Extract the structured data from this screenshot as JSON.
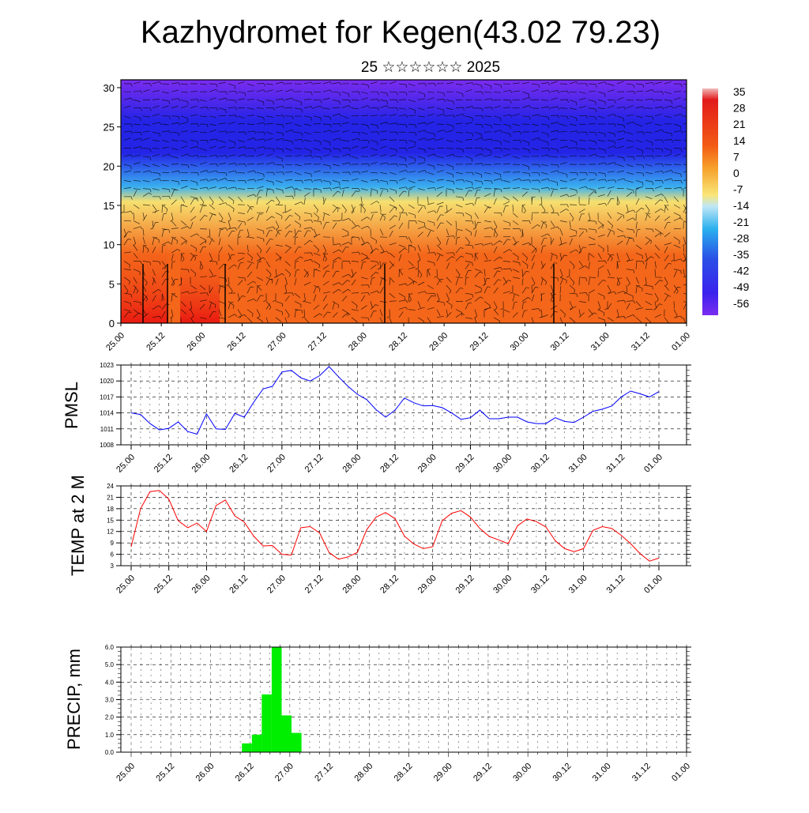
{
  "title": "Kazhydromet for Kegen(43.02 79.23)",
  "subtitle": "25 ☆☆☆☆☆☆ 2025",
  "time_labels": [
    "25.00",
    "25.12",
    "26.00",
    "26.12",
    "27.00",
    "27.12",
    "28.00",
    "28.12",
    "29.00",
    "29.12",
    "30.00",
    "30.12",
    "31.00",
    "31.12",
    "01.00"
  ],
  "chart_data": [
    {
      "type": "heatmap",
      "name": "temperature-cross-section",
      "ylim": [
        0,
        31
      ],
      "y_ticks": [
        0,
        5,
        10,
        15,
        20,
        25,
        30
      ],
      "colorbar_labels": [
        "35",
        "28",
        "21",
        "14",
        "7",
        "0",
        "-7",
        "-14",
        "-21",
        "-28",
        "-35",
        "-42",
        "-49",
        "-56"
      ],
      "colors": {
        "top": "#7b2cf0",
        "upper": "#2424e6",
        "mid": "#3ab0f0",
        "low": "#f6e070",
        "base": "#f4661a",
        "hot": "#e81010"
      }
    },
    {
      "type": "line",
      "name": "pmsl",
      "ylabel": "PMSL",
      "ylim": [
        1008,
        1023
      ],
      "y_ticks": [
        1008,
        1011,
        1014,
        1017,
        1020,
        1023
      ],
      "color": "#0000ff",
      "values": [
        1014.0,
        1013.7,
        1012.0,
        1010.8,
        1011.1,
        1012.3,
        1010.5,
        1010.0,
        1013.8,
        1011.0,
        1010.9,
        1013.9,
        1013.2,
        1016.0,
        1018.5,
        1019.0,
        1021.7,
        1022.0,
        1020.6,
        1020.0,
        1021.0,
        1022.7,
        1020.8,
        1019.0,
        1017.5,
        1016.5,
        1014.6,
        1013.2,
        1014.5,
        1016.8,
        1015.9,
        1015.3,
        1015.4,
        1015.0,
        1014.0,
        1012.8,
        1013.1,
        1014.5,
        1012.9,
        1012.9,
        1013.2,
        1013.2,
        1012.3,
        1012.0,
        1012.0,
        1013.1,
        1012.4,
        1012.2,
        1013.2,
        1014.3,
        1014.7,
        1015.3,
        1017.0,
        1018.1,
        1017.6,
        1017.0,
        1018.0
      ]
    },
    {
      "type": "line",
      "name": "temp-2m",
      "ylabel": "TEMP at 2 M",
      "ylim": [
        3,
        24
      ],
      "y_ticks": [
        3,
        6,
        9,
        12,
        15,
        18,
        21,
        24
      ],
      "color": "#ff0000",
      "values": [
        8.0,
        18.0,
        22.5,
        22.8,
        20.5,
        14.8,
        13.0,
        14.2,
        12.0,
        18.8,
        20.3,
        16.1,
        14.5,
        10.8,
        8.2,
        8.3,
        6.0,
        5.8,
        13.0,
        13.3,
        11.6,
        6.5,
        4.7,
        5.3,
        6.5,
        12.5,
        15.8,
        17.0,
        15.4,
        10.8,
        8.7,
        7.5,
        8.0,
        14.8,
        16.8,
        17.5,
        15.8,
        12.8,
        10.7,
        9.8,
        8.8,
        13.5,
        15.3,
        14.6,
        13.2,
        9.6,
        7.5,
        6.7,
        7.5,
        12.3,
        13.3,
        12.8,
        11.0,
        8.8,
        6.2,
        4.2,
        5.0
      ]
    },
    {
      "type": "bar",
      "name": "precip",
      "ylabel": "PRECIP, mm",
      "ylim": [
        0,
        6
      ],
      "y_tick_labels": [
        "0.0",
        "1.0",
        "2.0",
        "3.0",
        "4.0",
        "5.0",
        "6.0"
      ],
      "color": "#00ee00",
      "bars": [
        {
          "t": 13,
          "value": 0.5
        },
        {
          "t": 14,
          "value": 1.0
        },
        {
          "t": 15,
          "value": 3.3
        },
        {
          "t": 16,
          "value": 6.0
        },
        {
          "t": 17,
          "value": 2.1
        },
        {
          "t": 18,
          "value": 1.1
        }
      ]
    }
  ]
}
